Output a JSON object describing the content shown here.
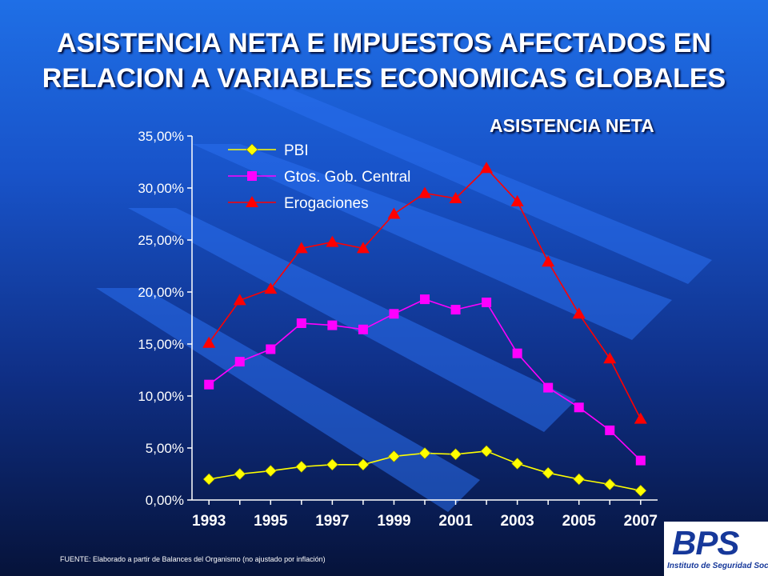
{
  "slide": {
    "title_line1": "ASISTENCIA NETA E IMPUESTOS AFECTADOS EN",
    "title_line2": "RELACION A VARIABLES ECONOMICAS GLOBALES",
    "subtitle": "ASISTENCIA NETA",
    "footer": "FUENTE: Elaborado a partir de Balances del Organismo (no ajustado por inflación)",
    "logo_text": "BPS",
    "logo_subtext": "Instituto de Seguridad Social"
  },
  "chart_data": {
    "type": "line",
    "title": "ASISTENCIA NETA",
    "xlabel": "",
    "ylabel": "",
    "x": [
      1993,
      1994,
      1995,
      1996,
      1997,
      1998,
      1999,
      2000,
      2001,
      2002,
      2003,
      2004,
      2005,
      2006,
      2007
    ],
    "x_tick_labels": [
      "1993",
      "1995",
      "1997",
      "1999",
      "2001",
      "2003",
      "2005",
      "2007"
    ],
    "y_tick_labels": [
      "0,00%",
      "5,00%",
      "10,00%",
      "15,00%",
      "20,00%",
      "25,00%",
      "30,00%",
      "35,00%"
    ],
    "ylim": [
      0,
      35
    ],
    "grid": false,
    "legend_position": "top-left",
    "series": [
      {
        "name": "PBI",
        "color": "#ffff00",
        "marker": "diamond",
        "values": [
          2.0,
          2.5,
          2.8,
          3.2,
          3.4,
          3.4,
          4.2,
          4.5,
          4.4,
          4.7,
          3.5,
          2.6,
          2.0,
          1.5,
          0.9
        ]
      },
      {
        "name": "Gtos. Gob. Central",
        "color": "#ff00ff",
        "marker": "square",
        "values": [
          11.1,
          13.3,
          14.5,
          17.0,
          16.8,
          16.4,
          17.9,
          19.3,
          18.3,
          19.0,
          14.1,
          10.8,
          8.9,
          6.7,
          3.8
        ]
      },
      {
        "name": "Erogaciones",
        "color": "#ff0000",
        "marker": "triangle",
        "values": [
          15.1,
          19.2,
          20.3,
          24.2,
          24.8,
          24.2,
          27.5,
          29.5,
          29.0,
          31.9,
          28.7,
          22.9,
          17.9,
          13.6,
          7.8
        ]
      }
    ]
  }
}
